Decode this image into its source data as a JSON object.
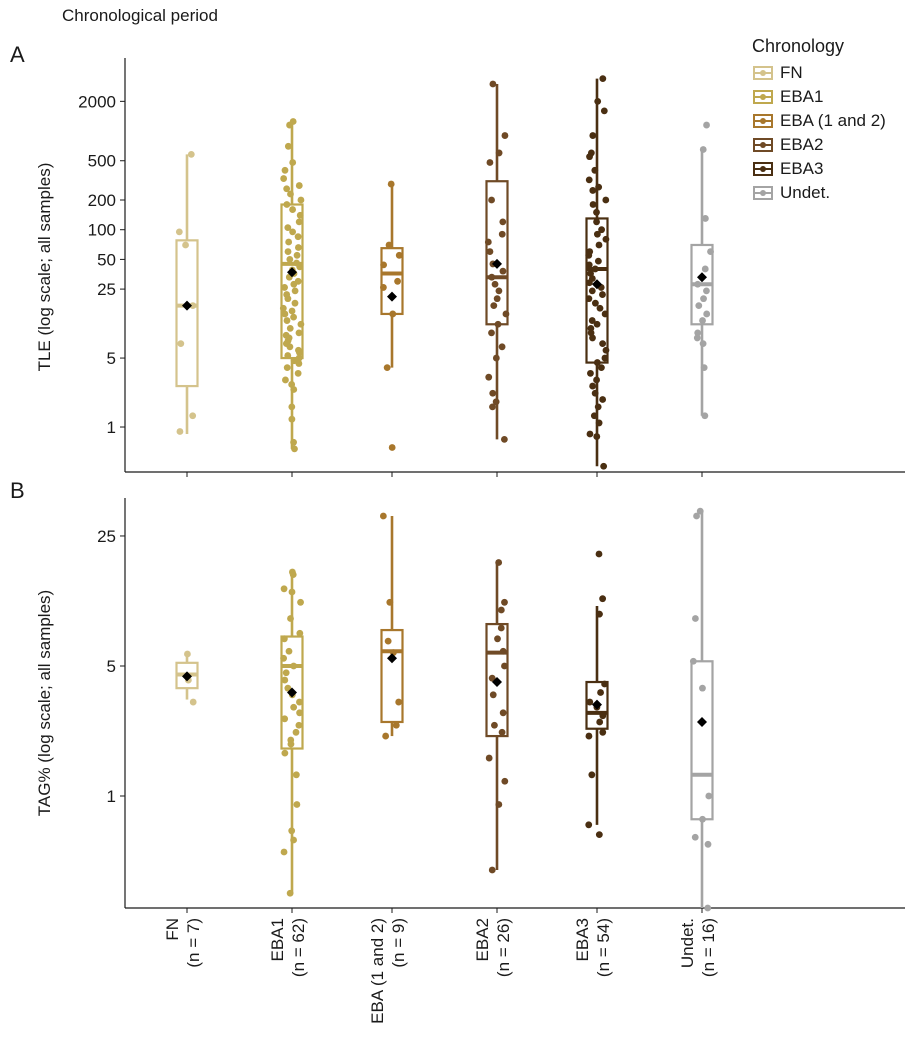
{
  "header": {
    "title": "Chronological period"
  },
  "legend": {
    "title": "Chronology",
    "items": [
      {
        "label": "FN",
        "color": "#d4c38c"
      },
      {
        "label": "EBA1",
        "color": "#bfa84e"
      },
      {
        "label": "EBA (1 and 2)",
        "color": "#a8772c"
      },
      {
        "label": "EBA2",
        "color": "#6f4a26"
      },
      {
        "label": "EBA3",
        "color": "#4a2f12"
      },
      {
        "label": "Undet.",
        "color": "#a4a4a4"
      }
    ]
  },
  "chart_data": [
    {
      "panel": "A",
      "type": "box",
      "ylabel": "TLE (log scale; all samples)",
      "yscale": "log",
      "ylim": [
        0.35,
        5500
      ],
      "yticks": [
        1,
        5,
        25,
        50,
        100,
        200,
        500,
        2000
      ],
      "categories": [
        "FN",
        "EBA1",
        "EBA (1 and 2)",
        "EBA2",
        "EBA3",
        "Undet."
      ],
      "boxes": [
        {
          "min": 0.85,
          "q1": 2.6,
          "median": 17,
          "q3": 78,
          "max": 580,
          "mean": 17
        },
        {
          "min": 0.6,
          "q1": 5,
          "median": 45,
          "q3": 180,
          "max": 1250,
          "mean": 37
        },
        {
          "min": 4,
          "q1": 14,
          "median": 36,
          "q3": 65,
          "max": 290,
          "mean": 21
        },
        {
          "min": 0.75,
          "q1": 11,
          "median": 33,
          "q3": 310,
          "max": 3000,
          "mean": 45
        },
        {
          "min": 0.4,
          "q1": 4.5,
          "median": 40,
          "q3": 130,
          "max": 3400,
          "mean": 28
        },
        {
          "min": 1.3,
          "q1": 11,
          "median": 28,
          "q3": 70,
          "max": 650,
          "mean": 33
        }
      ],
      "points": [
        [
          580,
          95,
          70,
          17,
          7,
          1.3,
          0.9
        ],
        [
          1250,
          1150,
          700,
          480,
          400,
          330,
          280,
          260,
          230,
          200,
          180,
          160,
          140,
          120,
          105,
          95,
          85,
          75,
          66,
          60,
          55,
          50,
          46,
          42,
          39,
          36,
          33,
          30,
          28,
          26,
          24,
          22,
          20,
          18,
          16,
          15,
          14,
          13,
          12,
          11,
          10,
          9,
          8.5,
          8,
          7.5,
          7,
          6.5,
          6,
          5.7,
          5.3,
          5,
          4.7,
          4.4,
          4,
          3.5,
          3,
          2.7,
          2.4,
          1.6,
          1.2,
          0.7,
          0.6
        ],
        [
          290,
          70,
          55,
          44,
          30,
          26,
          14,
          4,
          0.62
        ],
        [
          3000,
          900,
          600,
          480,
          200,
          120,
          90,
          75,
          60,
          45,
          38,
          33,
          28,
          24,
          20,
          17,
          14,
          11,
          9,
          6.5,
          5,
          3.2,
          2.2,
          1.8,
          1.6,
          0.75
        ],
        [
          3400,
          2000,
          1600,
          900,
          600,
          550,
          400,
          320,
          270,
          250,
          200,
          180,
          150,
          120,
          100,
          90,
          80,
          70,
          60,
          55,
          48,
          44,
          40,
          36,
          32,
          29,
          26,
          24,
          22,
          20,
          18,
          16,
          14,
          12,
          11,
          10,
          9,
          8,
          7,
          6,
          5,
          4.5,
          4,
          3.5,
          3,
          2.6,
          2.2,
          1.9,
          1.6,
          1.3,
          1.1,
          0.85,
          0.8,
          0.4
        ],
        [
          1150,
          650,
          130,
          60,
          40,
          28,
          24,
          20,
          17,
          14,
          12,
          9,
          8,
          7,
          4,
          1.3
        ]
      ]
    },
    {
      "panel": "B",
      "type": "box",
      "ylabel": "TAG% (log scale; all samples)",
      "yscale": "log",
      "ylim": [
        0.25,
        40
      ],
      "yticks": [
        1,
        5,
        25
      ],
      "categories": [
        "FN",
        "EBA1",
        "EBA (1 and 2)",
        "EBA2",
        "EBA3",
        "Undet."
      ],
      "boxes": [
        {
          "min": 3.3,
          "q1": 3.8,
          "median": 4.5,
          "q3": 5.2,
          "max": 6,
          "mean": 4.4
        },
        {
          "min": 0.3,
          "q1": 1.8,
          "median": 5,
          "q3": 7.2,
          "max": 16,
          "mean": 3.6
        },
        {
          "min": 2.1,
          "q1": 2.5,
          "median": 6,
          "q3": 7.8,
          "max": 32,
          "mean": 5.5
        },
        {
          "min": 0.4,
          "q1": 2.1,
          "median": 5.9,
          "q3": 8.4,
          "max": 18,
          "mean": 4.1
        },
        {
          "min": 0.7,
          "q1": 2.3,
          "median": 2.8,
          "q3": 4.1,
          "max": 10.5,
          "mean": 3.1
        },
        {
          "min": 0.25,
          "q1": 0.75,
          "median": 1.3,
          "q3": 5.3,
          "max": 34,
          "mean": 2.5
        }
      ],
      "points": [
        [
          5.8,
          4.2,
          3.2
        ],
        [
          16,
          15.5,
          13,
          12.5,
          11,
          9,
          7.5,
          7,
          6,
          5.5,
          5,
          4.6,
          4.2,
          3.8,
          3.5,
          3.2,
          3,
          2.8,
          2.6,
          2.4,
          2.2,
          2,
          1.9,
          1.7,
          1.3,
          0.9,
          0.65,
          0.58,
          0.5,
          0.3
        ],
        [
          32,
          11,
          6.8,
          5.9,
          3.2,
          2.4,
          2.1
        ],
        [
          18,
          11,
          10,
          8,
          7,
          6,
          5,
          4.3,
          3.5,
          2.8,
          2.4,
          2.2,
          1.6,
          1.2,
          0.9,
          0.4
        ],
        [
          20,
          11.5,
          9.5,
          9.5,
          4,
          3.6,
          3.2,
          3,
          2.7,
          2.5,
          2.2,
          2.1,
          1.3,
          0.7,
          0.62
        ],
        [
          34,
          32,
          9,
          5.3,
          3.8,
          1,
          0.75,
          0.6,
          0.55,
          0.25
        ]
      ]
    }
  ],
  "panels": {
    "A": {
      "label": "A"
    },
    "B": {
      "label": "B"
    }
  },
  "xaxis": {
    "ticks": [
      [
        "FN",
        "(n = 7)"
      ],
      [
        "EBA1",
        "(n = 62)"
      ],
      [
        "EBA (1 and 2)",
        "(n = 9)"
      ],
      [
        "EBA2",
        "(n = 26)"
      ],
      [
        "EBA3",
        "(n = 54)"
      ],
      [
        "Undet.",
        "(n = 16)"
      ]
    ]
  },
  "tick_labels": {
    "A": [
      "1",
      "5",
      "25",
      "50",
      "100",
      "200",
      "500",
      "2000"
    ],
    "B": [
      "1",
      "5",
      "25"
    ]
  }
}
